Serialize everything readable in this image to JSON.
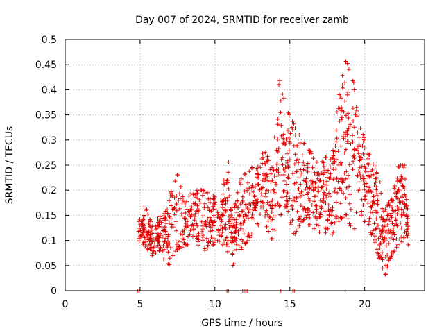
{
  "chart_data": {
    "type": "scatter",
    "title": "Day 007 of 2024, SRMTID for receiver zamb",
    "xlabel": "GPS time / hours",
    "ylabel": "SRMTID / TECUs",
    "xlim": [
      0,
      24
    ],
    "ylim": [
      0,
      0.5
    ],
    "xticks": [
      "0",
      "5",
      "10",
      "15",
      "20"
    ],
    "yticks": [
      "0",
      "0.05",
      "0.1",
      "0.15",
      "0.2",
      "0.25",
      "0.3",
      "0.35",
      "0.4",
      "0.45",
      "0.5"
    ],
    "grid": true,
    "marker": "+",
    "series_color": "#e00000",
    "envelope": [
      {
        "x": 4.9,
        "lo": 0.1,
        "hi": 0.14
      },
      {
        "x": 5.3,
        "lo": 0.09,
        "hi": 0.17
      },
      {
        "x": 5.8,
        "lo": 0.07,
        "hi": 0.13
      },
      {
        "x": 6.3,
        "lo": 0.08,
        "hi": 0.15
      },
      {
        "x": 6.8,
        "lo": 0.05,
        "hi": 0.16
      },
      {
        "x": 7.4,
        "lo": 0.08,
        "hi": 0.24
      },
      {
        "x": 8.0,
        "lo": 0.09,
        "hi": 0.18
      },
      {
        "x": 8.6,
        "lo": 0.1,
        "hi": 0.2
      },
      {
        "x": 9.2,
        "lo": 0.08,
        "hi": 0.2
      },
      {
        "x": 9.8,
        "lo": 0.09,
        "hi": 0.19
      },
      {
        "x": 10.4,
        "lo": 0.1,
        "hi": 0.18
      },
      {
        "x": 10.8,
        "lo": 0.07,
        "hi": 0.26
      },
      {
        "x": 11.2,
        "lo": 0.05,
        "hi": 0.15
      },
      {
        "x": 11.7,
        "lo": 0.08,
        "hi": 0.22
      },
      {
        "x": 12.2,
        "lo": 0.1,
        "hi": 0.24
      },
      {
        "x": 12.8,
        "lo": 0.13,
        "hi": 0.25
      },
      {
        "x": 13.3,
        "lo": 0.14,
        "hi": 0.28
      },
      {
        "x": 13.8,
        "lo": 0.1,
        "hi": 0.25
      },
      {
        "x": 14.3,
        "lo": 0.15,
        "hi": 0.42
      },
      {
        "x": 14.8,
        "lo": 0.16,
        "hi": 0.36
      },
      {
        "x": 15.3,
        "lo": 0.11,
        "hi": 0.33
      },
      {
        "x": 15.8,
        "lo": 0.14,
        "hi": 0.3
      },
      {
        "x": 16.3,
        "lo": 0.13,
        "hi": 0.28
      },
      {
        "x": 16.8,
        "lo": 0.12,
        "hi": 0.26
      },
      {
        "x": 17.3,
        "lo": 0.11,
        "hi": 0.27
      },
      {
        "x": 17.8,
        "lo": 0.11,
        "hi": 0.27
      },
      {
        "x": 18.3,
        "lo": 0.14,
        "hi": 0.39
      },
      {
        "x": 18.7,
        "lo": 0.15,
        "hi": 0.46
      },
      {
        "x": 19.2,
        "lo": 0.12,
        "hi": 0.42
      },
      {
        "x": 19.7,
        "lo": 0.15,
        "hi": 0.33
      },
      {
        "x": 20.2,
        "lo": 0.13,
        "hi": 0.28
      },
      {
        "x": 20.6,
        "lo": 0.1,
        "hi": 0.25
      },
      {
        "x": 21.0,
        "lo": 0.06,
        "hi": 0.22
      },
      {
        "x": 21.4,
        "lo": 0.03,
        "hi": 0.17
      },
      {
        "x": 21.8,
        "lo": 0.07,
        "hi": 0.18
      },
      {
        "x": 22.2,
        "lo": 0.09,
        "hi": 0.25
      },
      {
        "x": 22.6,
        "lo": 0.1,
        "hi": 0.25
      },
      {
        "x": 22.9,
        "lo": 0.09,
        "hi": 0.17
      }
    ],
    "zero_points_x": [
      4.85,
      4.95,
      10.8,
      10.9,
      11.85,
      11.95,
      12.05,
      12.15,
      14.4,
      15.2,
      15.3,
      18.7
    ]
  }
}
